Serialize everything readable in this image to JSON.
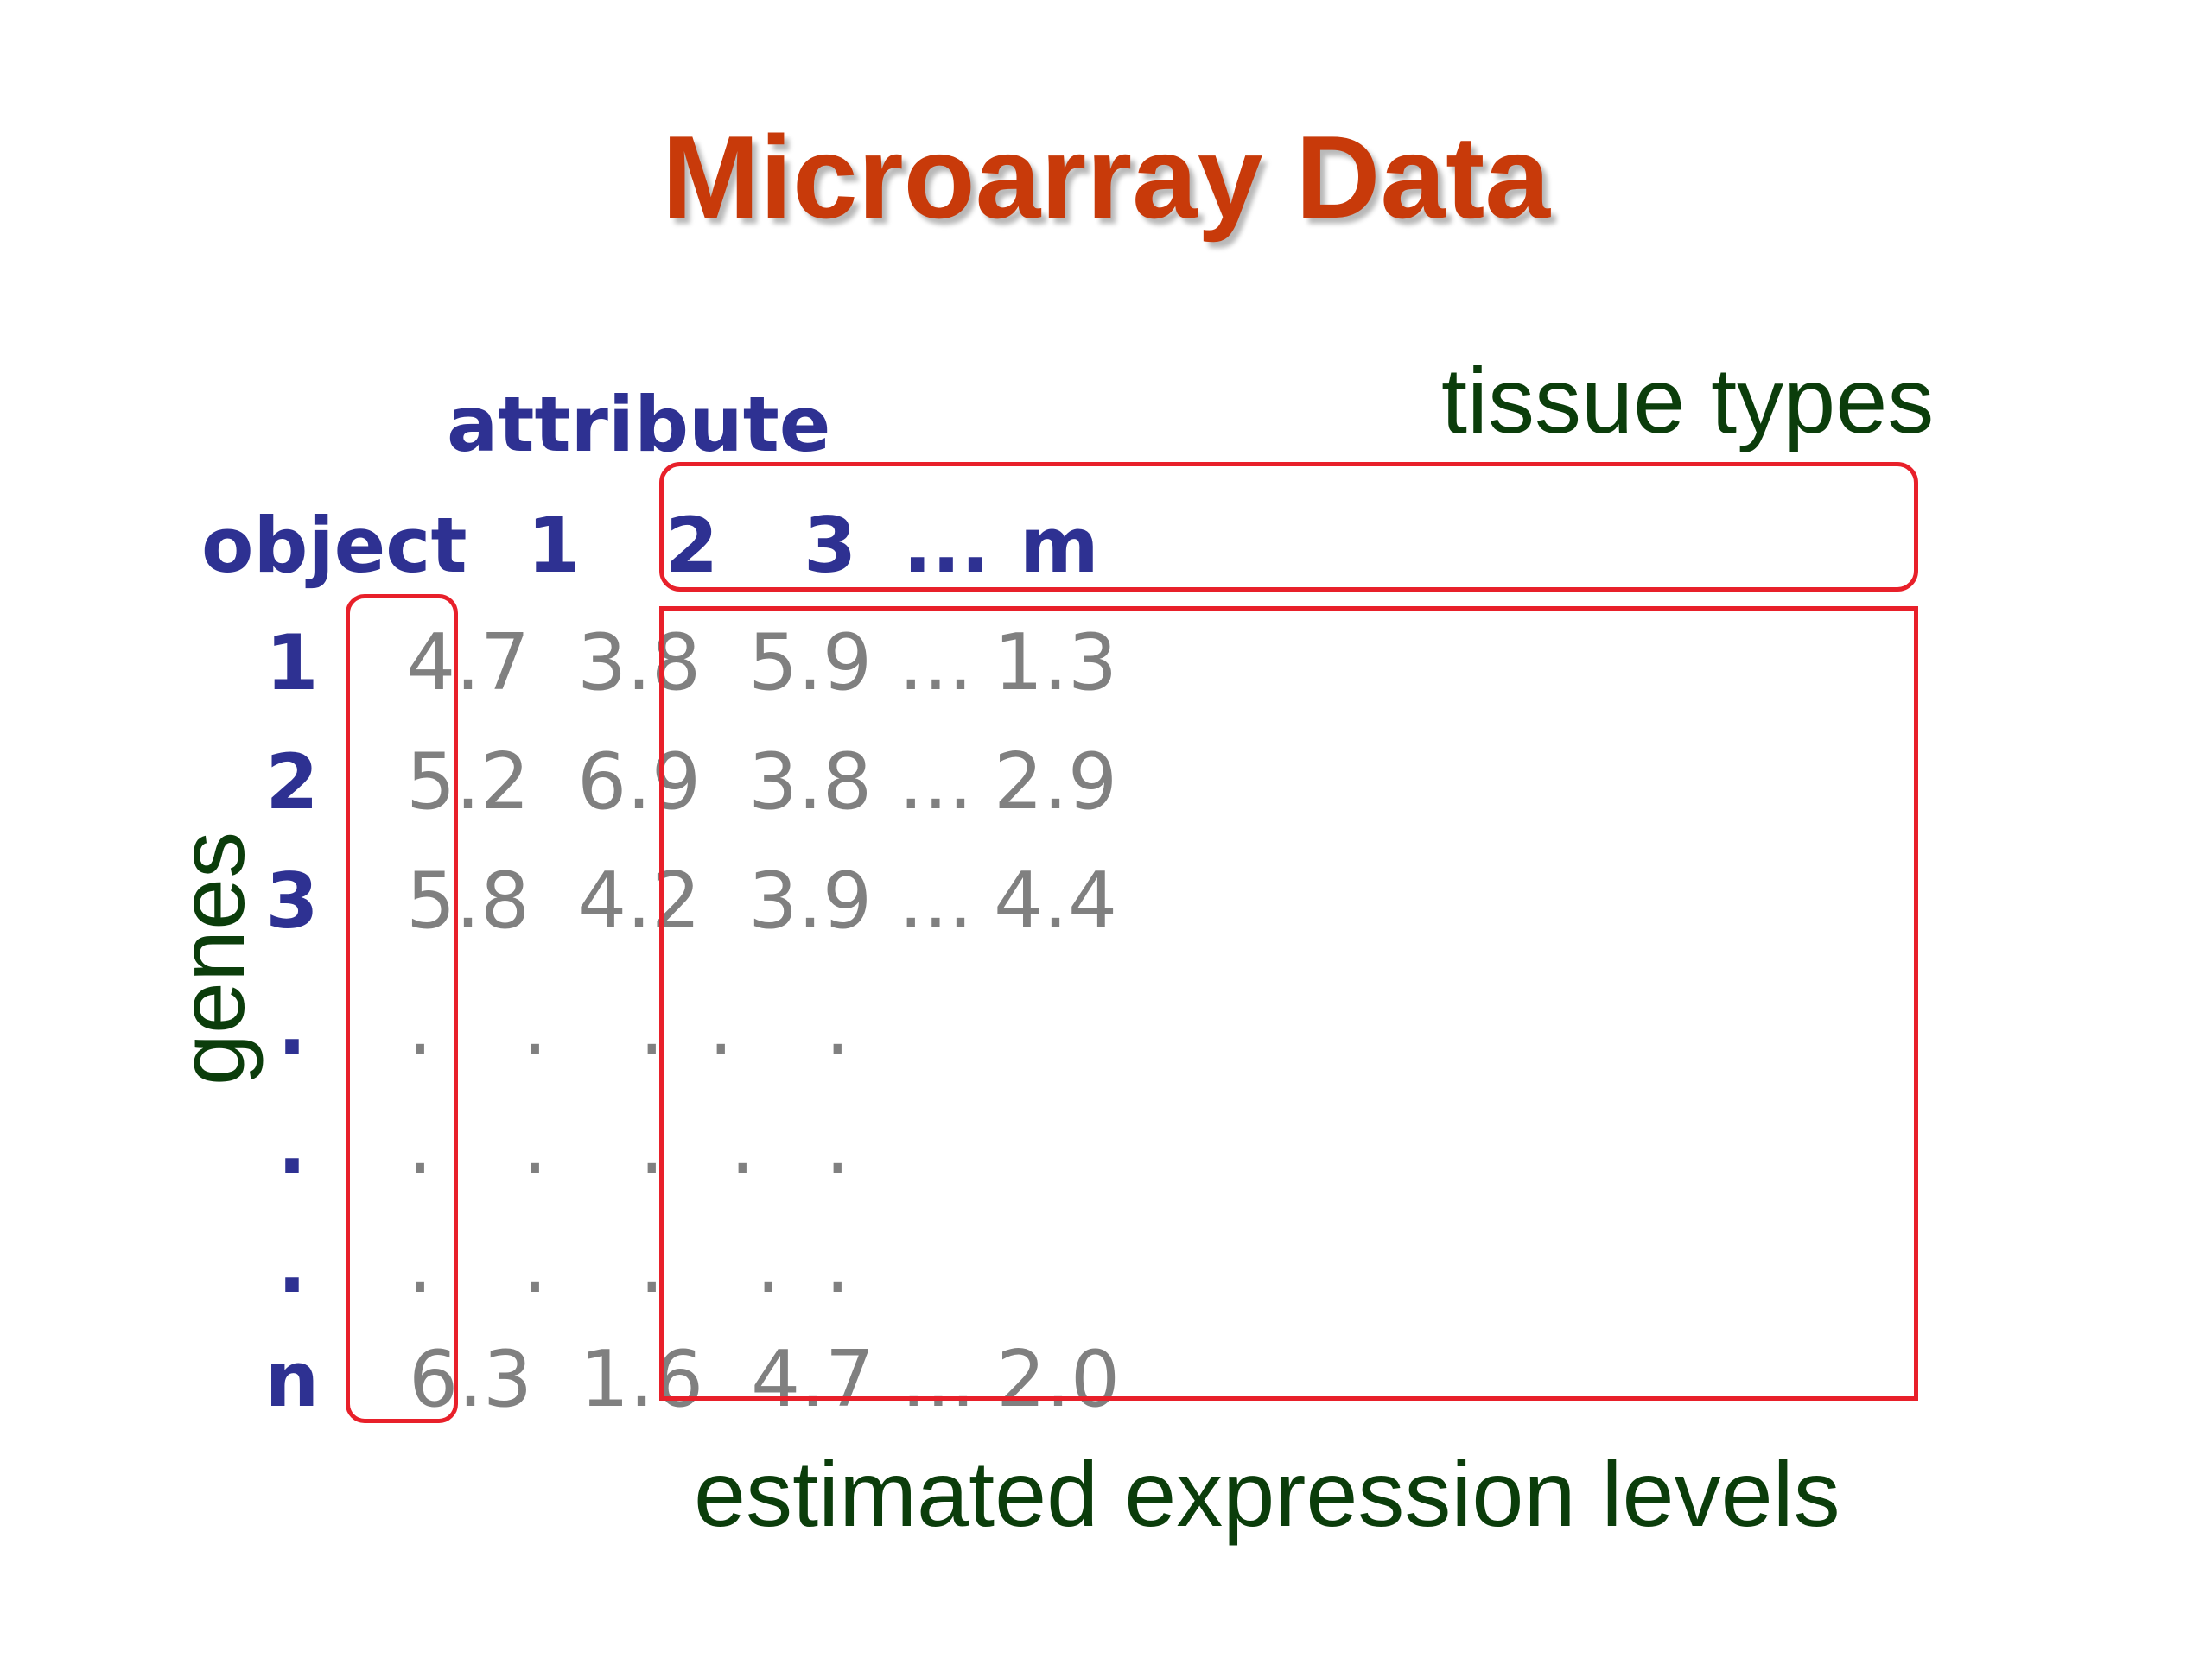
{
  "title": "Microarray Data",
  "labels": {
    "attribute": "attribute",
    "object": "object",
    "tissue_types": "tissue types",
    "genes": "genes",
    "estimated_expression_levels": "estimated expression levels"
  },
  "column_headers": [
    "1",
    "2",
    "3",
    "...",
    "m"
  ],
  "rows": [
    {
      "label": "1",
      "values": [
        "4.7",
        "3.8",
        "5.9",
        "...",
        "1.3"
      ]
    },
    {
      "label": "2",
      "values": [
        "5.2",
        "6.9",
        "3.8",
        "...",
        "2.9"
      ]
    },
    {
      "label": "3",
      "values": [
        "5.8",
        "4.2",
        "3.9",
        "...",
        "4.4"
      ]
    },
    {
      "label": ".",
      "values": [
        ".",
        ".",
        ".",
        ".",
        "."
      ]
    },
    {
      "label": ".",
      "values": [
        ".",
        ".",
        ".",
        ".",
        "."
      ]
    },
    {
      "label": ".",
      "values": [
        ".",
        ".",
        ".",
        ".",
        "."
      ]
    },
    {
      "label": "n",
      "values": [
        "6.3",
        "1.6",
        "4.7",
        "...",
        "2.0"
      ]
    }
  ],
  "colors": {
    "title": "#c83a0a",
    "header_blue": "#2e3192",
    "value_gray": "#808080",
    "label_green": "#0b3d0b",
    "box_red": "#e8202a"
  }
}
